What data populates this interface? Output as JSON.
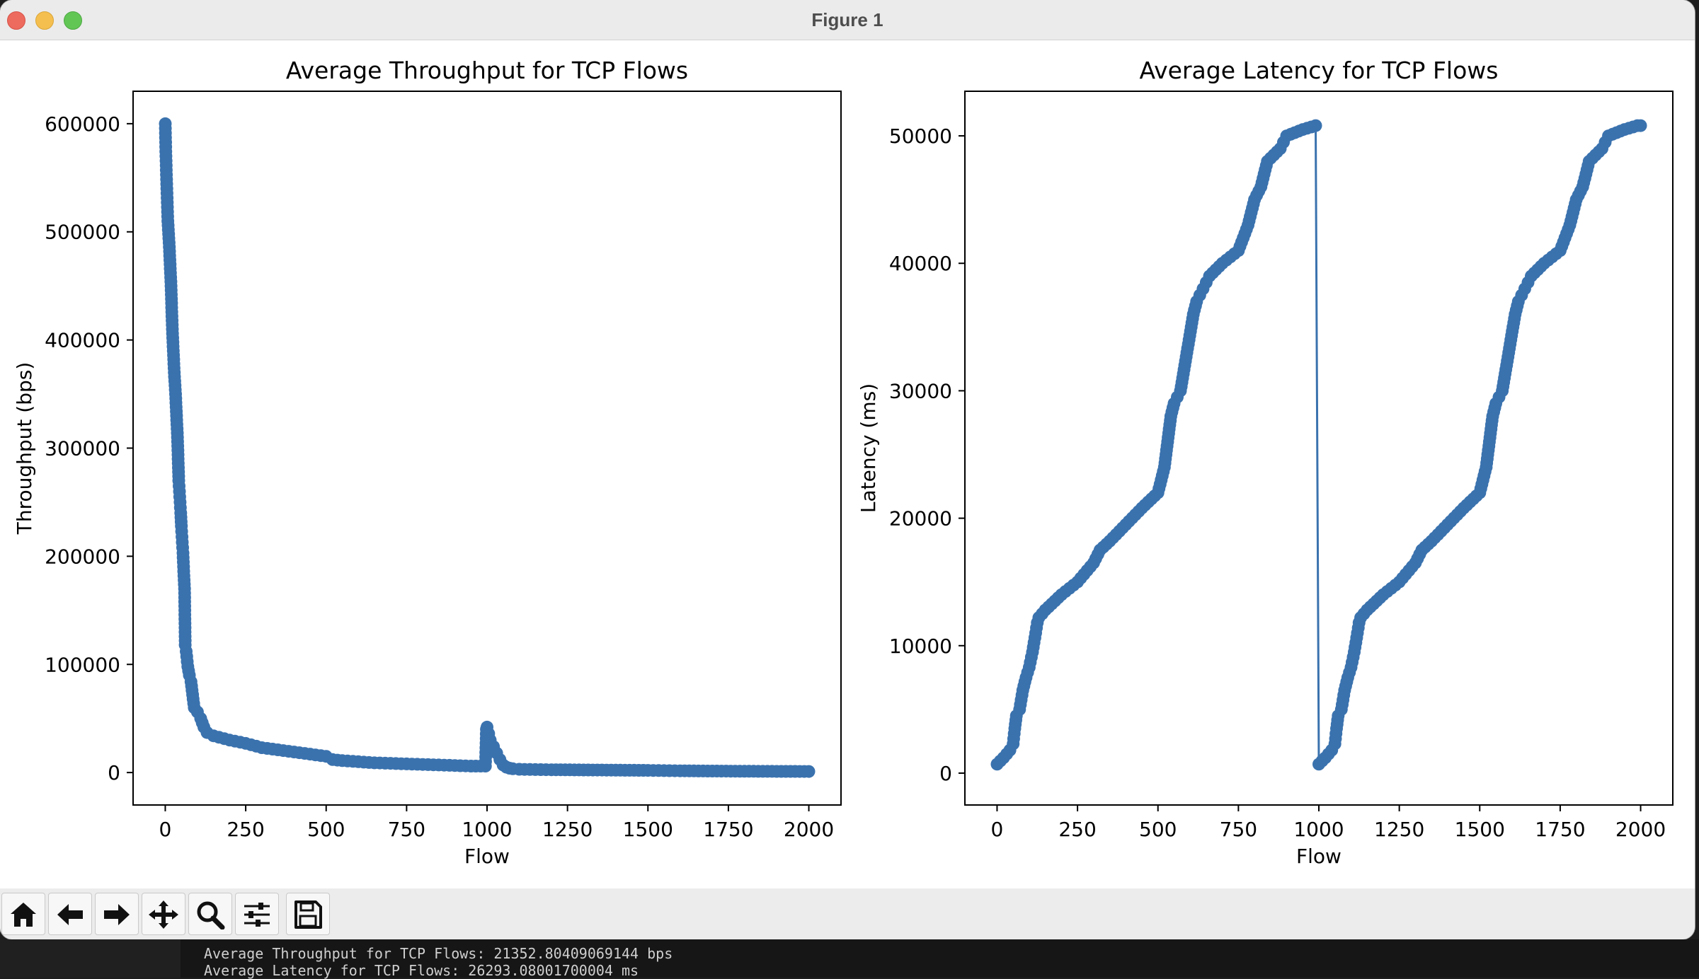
{
  "window": {
    "title": "Figure 1"
  },
  "toolbar": {
    "buttons": [
      "home-icon",
      "back-arrow-icon",
      "forward-arrow-icon",
      "pan-move-icon",
      "zoom-magnifier-icon",
      "configure-subplots-icon",
      "save-floppy-icon"
    ]
  },
  "terminal": {
    "lines": [
      "Average Throughput for TCP Flows: 21352.80409069144 bps",
      "Average Latency for TCP Flows: 26293.08001700004 ms"
    ]
  },
  "colors": {
    "series": "#3a72ae"
  },
  "chart_data": [
    {
      "type": "line",
      "title": "Average Throughput for TCP Flows",
      "xlabel": "Flow",
      "ylabel": "Throughput (bps)",
      "xlim": [
        -100,
        2100
      ],
      "ylim": [
        -30000,
        630000
      ],
      "xticks": [
        0,
        250,
        500,
        750,
        1000,
        1250,
        1500,
        1750,
        2000
      ],
      "yticks": [
        0,
        100000,
        200000,
        300000,
        400000,
        500000,
        600000
      ],
      "xtick_labels": [
        "0",
        "250",
        "500",
        "750",
        "1000",
        "1250",
        "1500",
        "1750",
        "2000"
      ],
      "ytick_labels": [
        "0",
        "100000",
        "200000",
        "300000",
        "400000",
        "500000",
        "600000"
      ],
      "grid": false,
      "markers": "circle",
      "series": [
        {
          "x": [
            0,
            2,
            5,
            8,
            12,
            15,
            18,
            20,
            22,
            25,
            28,
            32,
            35,
            38,
            40,
            42,
            45,
            48,
            50,
            52,
            55,
            58,
            60,
            62,
            65,
            70,
            75,
            80,
            85,
            90,
            100,
            110,
            120,
            130,
            150,
            200,
            250,
            300,
            350,
            400,
            450,
            500,
            520,
            550,
            600,
            650,
            700,
            750,
            800,
            850,
            900,
            950,
            995,
            998,
            1000,
            1005,
            1010,
            1020,
            1030,
            1040,
            1050,
            1060,
            1070,
            1080,
            1100,
            1150,
            1200,
            1300,
            1400,
            1500,
            1550,
            1600,
            1700,
            1800,
            1900,
            2000
          ],
          "y": [
            600000,
            570000,
            540000,
            510000,
            490000,
            470000,
            450000,
            430000,
            410000,
            390000,
            370000,
            350000,
            330000,
            310000,
            290000,
            270000,
            255000,
            240000,
            228000,
            218000,
            203000,
            182000,
            170000,
            118000,
            112000,
            98000,
            90000,
            84000,
            72000,
            60000,
            56000,
            50000,
            42000,
            37000,
            34000,
            30000,
            27000,
            23000,
            21000,
            19000,
            17000,
            15000,
            12000,
            11000,
            10000,
            9000,
            8500,
            8000,
            7500,
            7000,
            6500,
            6000,
            6000,
            40000,
            42000,
            36000,
            30000,
            24000,
            18000,
            12000,
            7000,
            5000,
            4000,
            3500,
            3000,
            2800,
            2600,
            2400,
            2200,
            2000,
            1800,
            1600,
            1400,
            1200,
            1100,
            1000
          ]
        }
      ]
    },
    {
      "type": "line",
      "title": "Average Latency for TCP Flows",
      "xlabel": "Flow",
      "ylabel": "Latency (ms)",
      "xlim": [
        -100,
        2100
      ],
      "ylim": [
        -2500,
        53500
      ],
      "xticks": [
        0,
        250,
        500,
        750,
        1000,
        1250,
        1500,
        1750,
        2000
      ],
      "yticks": [
        0,
        10000,
        20000,
        30000,
        40000,
        50000
      ],
      "xtick_labels": [
        "0",
        "250",
        "500",
        "750",
        "1000",
        "1250",
        "1500",
        "1750",
        "2000"
      ],
      "ytick_labels": [
        "0",
        "10000",
        "20000",
        "30000",
        "40000",
        "50000"
      ],
      "grid": false,
      "markers": "circle",
      "series": [
        {
          "x": [
            0,
            20,
            40,
            50,
            55,
            60,
            70,
            80,
            90,
            100,
            110,
            120,
            125,
            130,
            150,
            200,
            250,
            300,
            320,
            350,
            400,
            450,
            500,
            520,
            530,
            540,
            550,
            560,
            570,
            590,
            610,
            620,
            630,
            640,
            650,
            660,
            700,
            750,
            780,
            790,
            800,
            820,
            840,
            880,
            890,
            900,
            950,
            990,
            1000,
            1020,
            1040,
            1050,
            1055,
            1060,
            1070,
            1080,
            1090,
            1100,
            1110,
            1120,
            1125,
            1130,
            1150,
            1200,
            1250,
            1300,
            1320,
            1350,
            1400,
            1450,
            1500,
            1520,
            1530,
            1540,
            1550,
            1560,
            1570,
            1590,
            1610,
            1620,
            1630,
            1640,
            1650,
            1660,
            1700,
            1750,
            1780,
            1790,
            1800,
            1820,
            1840,
            1880,
            1890,
            1900,
            1950,
            1990,
            2000
          ],
          "y": [
            700,
            1200,
            1800,
            2300,
            3500,
            4500,
            5000,
            6500,
            7500,
            8300,
            9500,
            11000,
            11800,
            12200,
            12800,
            14000,
            15000,
            16500,
            17500,
            18200,
            19500,
            20800,
            22000,
            24000,
            26000,
            28000,
            29000,
            29500,
            30000,
            33000,
            36000,
            37000,
            37500,
            38000,
            38500,
            39000,
            40000,
            41000,
            43000,
            44000,
            45000,
            46000,
            48000,
            49000,
            49500,
            50000,
            50500,
            50800,
            700,
            1200,
            1800,
            2300,
            3500,
            4500,
            5000,
            6500,
            7500,
            8300,
            9500,
            11000,
            11800,
            12200,
            12800,
            14000,
            15000,
            16500,
            17500,
            18200,
            19500,
            20800,
            22000,
            24000,
            26000,
            28000,
            29000,
            29500,
            30000,
            33000,
            36000,
            37000,
            37500,
            38000,
            38500,
            39000,
            40000,
            41000,
            43000,
            44000,
            45000,
            46000,
            48000,
            49000,
            49500,
            50000,
            50500,
            50800,
            50800
          ]
        }
      ]
    }
  ]
}
